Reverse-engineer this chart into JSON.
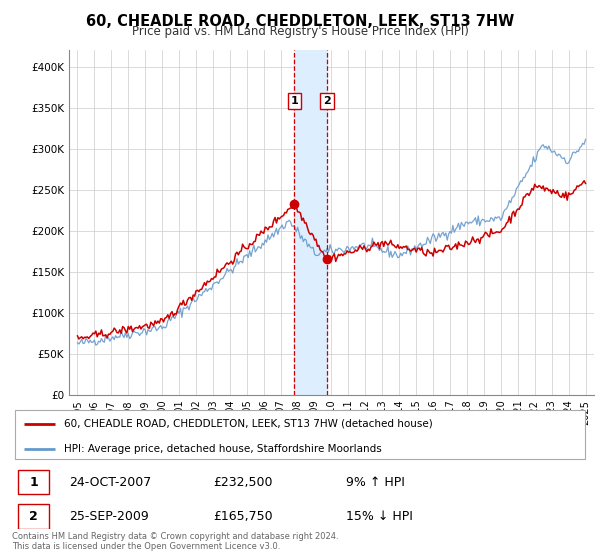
{
  "title": "60, CHEADLE ROAD, CHEDDLETON, LEEK, ST13 7HW",
  "subtitle": "Price paid vs. HM Land Registry's House Price Index (HPI)",
  "legend_line1": "60, CHEADLE ROAD, CHEDDLETON, LEEK, ST13 7HW (detached house)",
  "legend_line2": "HPI: Average price, detached house, Staffordshire Moorlands",
  "transaction1_date": "24-OCT-2007",
  "transaction1_price": "£232,500",
  "transaction1_hpi": "9% ↑ HPI",
  "transaction1_year": 2007.8,
  "transaction1_value": 232500,
  "transaction2_date": "25-SEP-2009",
  "transaction2_price": "£165,750",
  "transaction2_hpi": "15% ↓ HPI",
  "transaction2_year": 2009.73,
  "transaction2_value": 165750,
  "price_line_color": "#cc0000",
  "hpi_line_color": "#6699cc",
  "shade_color": "#ddeeff",
  "vline_color": "#cc0000",
  "footnote": "Contains HM Land Registry data © Crown copyright and database right 2024.\nThis data is licensed under the Open Government Licence v3.0.",
  "ylim": [
    0,
    420000
  ],
  "yticks": [
    0,
    50000,
    100000,
    150000,
    200000,
    250000,
    300000,
    350000,
    400000
  ],
  "ytick_labels": [
    "£0",
    "£50K",
    "£100K",
    "£150K",
    "£200K",
    "£250K",
    "£300K",
    "£350K",
    "£400K"
  ],
  "xlim_start": 1994.5,
  "xlim_end": 2025.5,
  "background_color": "#ffffff",
  "grid_color": "#cccccc",
  "x_years": [
    1995,
    1996,
    1997,
    1998,
    1999,
    2000,
    2001,
    2002,
    2003,
    2004,
    2005,
    2006,
    2007,
    2008,
    2009,
    2010,
    2011,
    2012,
    2013,
    2014,
    2015,
    2016,
    2017,
    2018,
    2019,
    2020,
    2021,
    2022,
    2023,
    2024,
    2025
  ]
}
